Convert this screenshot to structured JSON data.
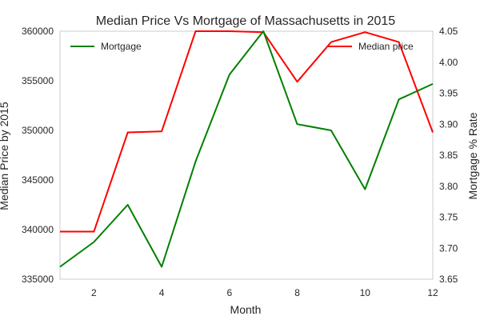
{
  "chart_data": {
    "type": "line",
    "title": "Median Price Vs Mortgage of Massachusetts in 2015",
    "xlabel": "Month",
    "x": [
      1,
      2,
      3,
      4,
      5,
      6,
      7,
      8,
      9,
      10,
      11,
      12
    ],
    "xlim": [
      1,
      12
    ],
    "xticks": [
      2,
      4,
      6,
      8,
      10,
      12
    ],
    "grid": false,
    "left_axis": {
      "label": "Median Price by 2015",
      "lim": [
        335000,
        360000
      ],
      "ticks": [
        335000,
        340000,
        345000,
        350000,
        355000,
        360000
      ]
    },
    "right_axis": {
      "label": "Mortgage % Rate",
      "lim": [
        3.65,
        4.05
      ],
      "ticks": [
        "3.65",
        "3.70",
        "3.75",
        "3.80",
        "3.85",
        "3.90",
        "3.95",
        "4.00",
        "4.05"
      ]
    },
    "series": [
      {
        "name": "Median price",
        "axis": "left",
        "color": "#ff0000",
        "legend_position": "upper-right",
        "values": [
          339800,
          339800,
          349800,
          349900,
          360000,
          360000,
          359900,
          354900,
          358900,
          359900,
          358900,
          349800
        ]
      },
      {
        "name": "Mortgage",
        "axis": "right",
        "color": "#008000",
        "legend_position": "upper-left",
        "values": [
          3.67,
          3.71,
          3.77,
          3.67,
          3.84,
          3.98,
          4.05,
          3.9,
          3.89,
          3.795,
          3.94,
          3.965
        ]
      }
    ]
  }
}
